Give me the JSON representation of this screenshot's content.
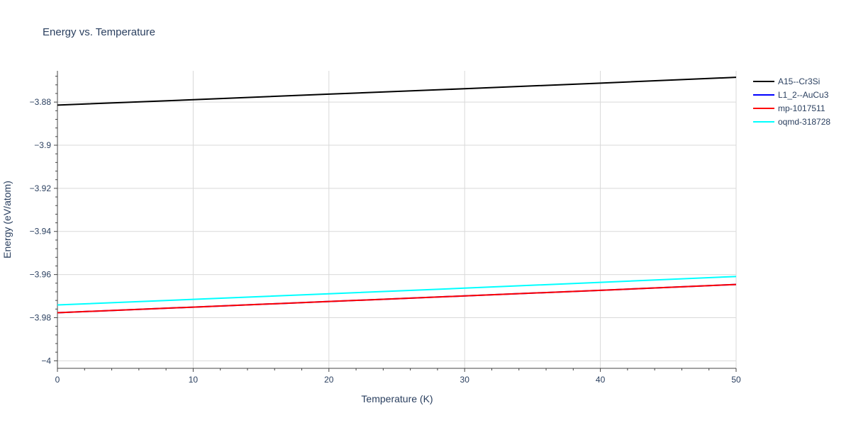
{
  "chart_data": {
    "type": "line",
    "title": "Energy vs. Temperature",
    "xlabel": "Temperature (K)",
    "ylabel": "Energy (eV/atom)",
    "xlim": [
      0,
      50
    ],
    "ylim": [
      -4.0035,
      -3.8655
    ],
    "x_ticks": [
      0,
      10,
      20,
      30,
      40,
      50
    ],
    "x_tick_labels": [
      "0",
      "10",
      "20",
      "30",
      "40",
      "50"
    ],
    "y_ticks": [
      -4.0,
      -3.98,
      -3.96,
      -3.94,
      -3.92,
      -3.9,
      -3.88
    ],
    "y_tick_labels": [
      "−4",
      "−3.98",
      "−3.96",
      "−3.94",
      "−3.92",
      "−3.9",
      "−3.88"
    ],
    "grid": true,
    "legend_position": "top-right",
    "series": [
      {
        "name": "A15--Cr3Si",
        "color": "#000000",
        "x": [
          0,
          10,
          20,
          30,
          40,
          50
        ],
        "y": [
          -3.8814,
          -3.8789,
          -3.8763,
          -3.8738,
          -3.8712,
          -3.8685
        ]
      },
      {
        "name": "L1_2--AuCu3",
        "color": "#0000ff",
        "x": [
          0,
          10,
          20,
          30,
          40,
          50
        ],
        "y": [
          -3.9777,
          -3.9751,
          -3.9725,
          -3.9699,
          -3.9673,
          -3.9646
        ]
      },
      {
        "name": "mp-1017511",
        "color": "#ff0000",
        "x": [
          0,
          10,
          20,
          30,
          40,
          50
        ],
        "y": [
          -3.9777,
          -3.9751,
          -3.9725,
          -3.9699,
          -3.9673,
          -3.9646
        ]
      },
      {
        "name": "oqmd-318728",
        "color": "#00ffff",
        "x": [
          0,
          10,
          20,
          30,
          40,
          50
        ],
        "y": [
          -3.9741,
          -3.9715,
          -3.9689,
          -3.9663,
          -3.9636,
          -3.9609
        ]
      }
    ]
  }
}
